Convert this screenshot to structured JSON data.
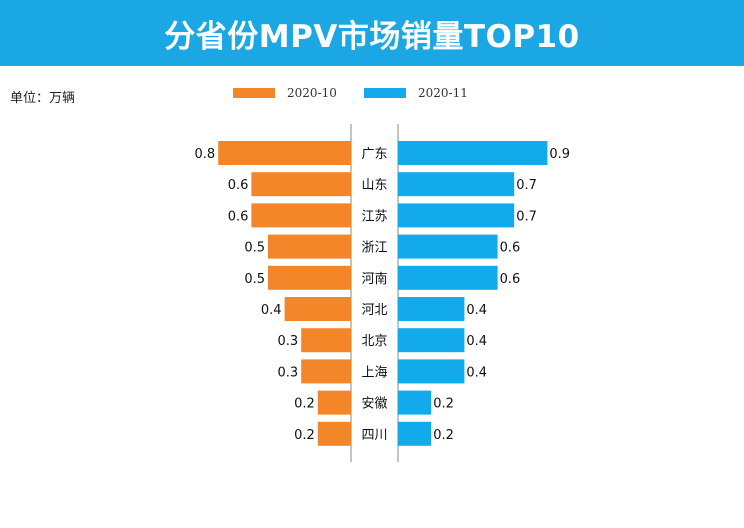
{
  "title": "分省份MPV市场销量TOP10",
  "unit": "单位：万辆",
  "colors": {
    "title_bg": "#1aa7e3",
    "series_left": "#f4862a",
    "series_right": "#12aaeb",
    "axis": "#888888"
  },
  "chart_data": {
    "type": "bar",
    "orientation": "horizontal-butterfly",
    "title": "分省份MPV市场销量TOP10",
    "unit": "单位：万辆",
    "categories": [
      "广东",
      "山东",
      "江苏",
      "浙江",
      "河南",
      "河北",
      "北京",
      "上海",
      "安徽",
      "四川"
    ],
    "series": [
      {
        "name": "2020-10",
        "values": [
          0.8,
          0.6,
          0.6,
          0.5,
          0.5,
          0.4,
          0.3,
          0.3,
          0.2,
          0.2
        ],
        "labels": [
          "0.8",
          "0.6",
          "0.6",
          "0.5",
          "0.5",
          "0.4",
          "0.3",
          "0.3",
          "0.2",
          "0.2"
        ]
      },
      {
        "name": "2020-11",
        "values": [
          0.9,
          0.7,
          0.7,
          0.6,
          0.6,
          0.4,
          0.4,
          0.4,
          0.2,
          0.2
        ],
        "labels": [
          "0.9",
          "0.7",
          "0.7",
          "0.6",
          "0.6",
          "0.4",
          "0.4",
          "0.4",
          "0.2",
          "0.2"
        ]
      }
    ],
    "legend": "top-center",
    "grid": false
  }
}
